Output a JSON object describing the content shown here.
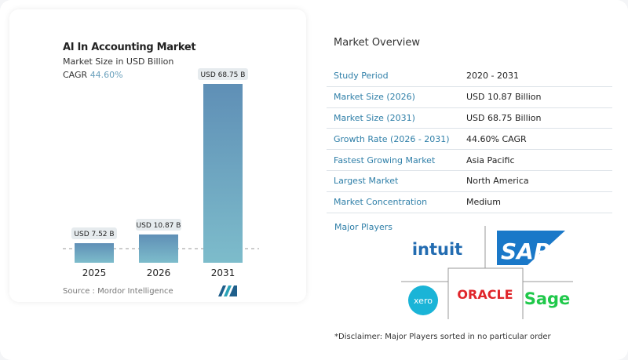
{
  "chart_data": {
    "type": "bar",
    "title": "AI In Accounting Market",
    "subtitle": "Market Size in USD Billion",
    "cagr_label": "CAGR",
    "cagr_value": "44.60%",
    "categories": [
      "2025",
      "2026",
      "2031"
    ],
    "values": [
      7.52,
      10.87,
      68.75
    ],
    "data_labels": [
      "USD 7.52 B",
      "USD 10.87 B",
      "USD 68.75 B"
    ],
    "xlabel": "",
    "ylabel": "",
    "grid": false,
    "colors": {
      "bar_top": "#5f8fb6",
      "bar_bottom": "#7dbccb",
      "cagr": "#6aa0bc"
    }
  },
  "source": "Source :  Mordor Intelligence",
  "overview": {
    "title": "Market Overview",
    "rows": [
      {
        "label": "Study Period",
        "value": "2020 - 2031"
      },
      {
        "label": "Market Size (2026)",
        "value": "USD 10.87 Billion"
      },
      {
        "label": "Market Size (2031)",
        "value": "USD 68.75 Billion"
      },
      {
        "label": "Growth Rate (2026 - 2031)",
        "value": "44.60% CAGR"
      },
      {
        "label": "Fastest Growing Market",
        "value": "Asia Pacific"
      },
      {
        "label": "Largest Market",
        "value": "North America"
      },
      {
        "label": "Market Concentration",
        "value": "Medium"
      }
    ],
    "major_players_label": "Major Players",
    "players": [
      "intuit",
      "SAP",
      "xero",
      "ORACLE",
      "Sage"
    ],
    "disclaimer": "*Disclaimer: Major Players sorted in no particular order"
  }
}
